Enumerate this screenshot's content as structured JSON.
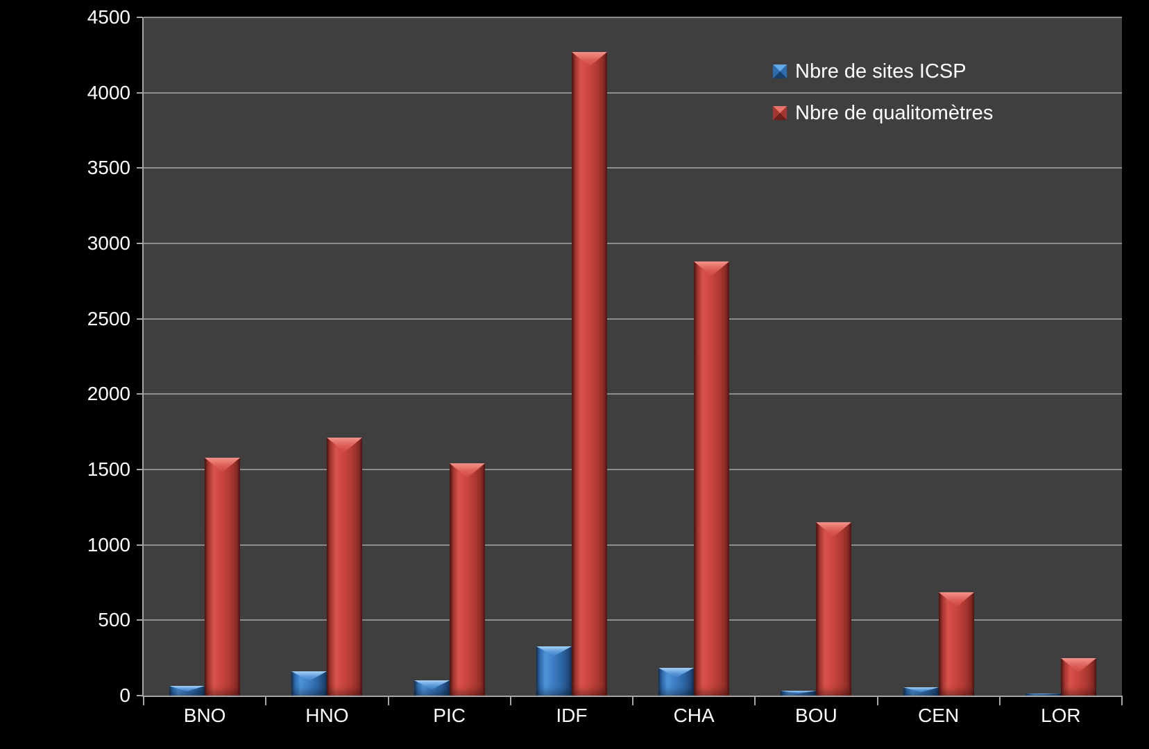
{
  "chart_data": {
    "type": "bar",
    "title": "",
    "xlabel": "",
    "ylabel": "",
    "categories": [
      "BNO",
      "HNO",
      "PIC",
      "IDF",
      "CHA",
      "BOU",
      "CEN",
      "LOR"
    ],
    "series": [
      {
        "name": "Nbre de sites ICSP",
        "color": "#3f80c8",
        "values": [
          65,
          160,
          100,
          325,
          185,
          30,
          55,
          15
        ]
      },
      {
        "name": "Nbre de qualitomètres",
        "color": "#cc4740",
        "values": [
          1580,
          1710,
          1540,
          4270,
          2880,
          1150,
          685,
          250
        ]
      }
    ],
    "ylim": [
      0,
      4500
    ],
    "yticks": [
      0,
      500,
      1000,
      1500,
      2000,
      2500,
      3000,
      3500,
      4000,
      4500
    ],
    "grid": true,
    "legend_position": "top-right",
    "colors": {
      "background": "#000000",
      "plot_background": "#3f3f3f",
      "gridline": "#8c8c8c",
      "axis": "#a6a6a6",
      "text": "#ffffff"
    }
  }
}
